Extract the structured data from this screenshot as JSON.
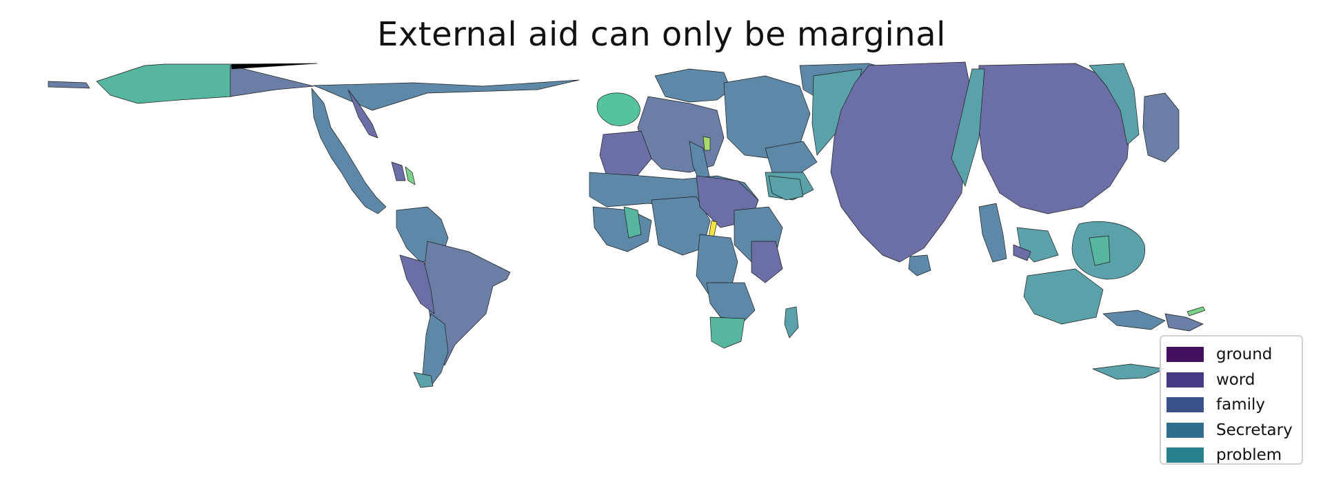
{
  "title": "External aid can only be marginal",
  "legend": {
    "items": [
      {
        "label": "ground",
        "color": "#440f5f"
      },
      {
        "label": "word",
        "color": "#463883"
      },
      {
        "label": "family",
        "color": "#3a528b"
      },
      {
        "label": "Secretary",
        "color": "#2f6c8e"
      },
      {
        "label": "problem",
        "color": "#26808e"
      }
    ]
  },
  "map": {
    "projection": "cartogram (distorted world map)",
    "palette": [
      "#6b6fa5",
      "#5e88a8",
      "#5aa1a9",
      "#56b6a0",
      "#aadb6a",
      "#f2e542"
    ]
  }
}
